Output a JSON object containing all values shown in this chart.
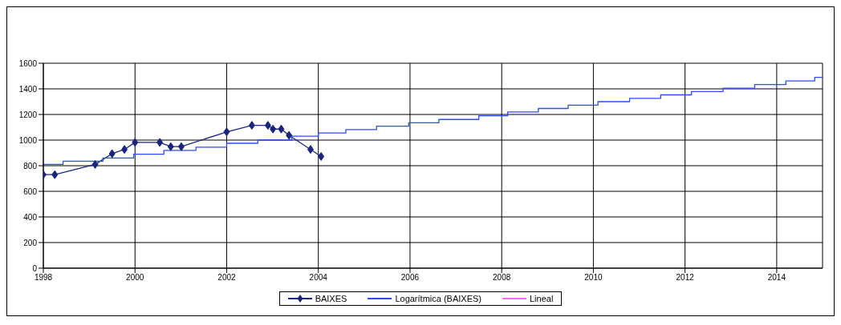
{
  "chart_data": {
    "type": "line",
    "series": [
      {
        "name": "BAIXES",
        "color": "#1a237e",
        "marker": "diamond",
        "x": [
          1998,
          1998.25,
          1999.13,
          1999.5,
          1999.77,
          2000,
          2000.54,
          2000.78,
          2001.01,
          2002,
          2002.55,
          2002.9,
          2003.01,
          2003.19,
          2003.36,
          2003.83,
          2004.06
        ],
        "values": [
          730,
          730,
          810,
          894,
          927,
          982,
          982,
          949,
          949,
          1064,
          1115,
          1115,
          1086,
          1086,
          1037,
          927,
          872
        ]
      },
      {
        "name": "Logarítmica (BAIXES)",
        "type": "step",
        "color": "#2a4bff",
        "marker": "none",
        "x": [
          1998,
          1998.43,
          1999.3,
          1999.97,
          2000.63,
          2001.33,
          2002,
          2002.68,
          2003.42,
          2004,
          2004.6,
          2005.27,
          2005.97,
          2006.63,
          2007.5,
          2008.13,
          2008.8,
          2009.45,
          2010.1,
          2010.79,
          2011.47,
          2012.14,
          2012.83,
          2013.52,
          2014.2,
          2014.83,
          2015
        ],
        "values": [
          810,
          835,
          860,
          890,
          920,
          945,
          975,
          1000,
          1030,
          1055,
          1082,
          1108,
          1135,
          1161,
          1190,
          1220,
          1247,
          1273,
          1300,
          1326,
          1353,
          1379,
          1405,
          1434,
          1462,
          1490,
          1490
        ]
      },
      {
        "name": "Lineal",
        "color": "#ff66ff",
        "marker": "none"
      }
    ],
    "xlim": [
      1998,
      2015
    ],
    "xticks": [
      1998,
      2000,
      2002,
      2004,
      2006,
      2008,
      2010,
      2012,
      2014
    ],
    "ylim": [
      0,
      1600
    ],
    "yticks": [
      0,
      200,
      400,
      600,
      800,
      1000,
      1200,
      1400,
      1600
    ],
    "grid": true,
    "legend": "bottom"
  }
}
